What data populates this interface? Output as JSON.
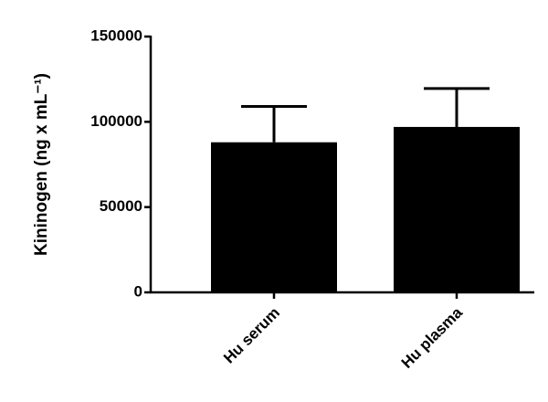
{
  "chart_data": {
    "type": "bar",
    "ylabel": "Kininogen (ng x mL⁻¹)",
    "categories": [
      "Hu serum",
      "Hu plasma"
    ],
    "values": [
      88000,
      97000
    ],
    "errors": [
      21000,
      22500
    ],
    "color": "#000000",
    "ylim": [
      0,
      150000
    ],
    "yticks": [
      0,
      50000,
      100000,
      150000
    ],
    "grid": false
  }
}
